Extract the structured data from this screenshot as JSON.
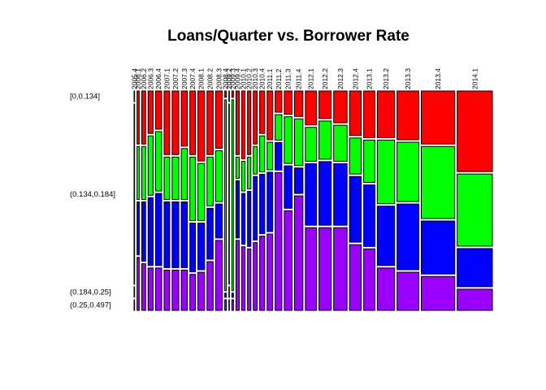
{
  "chart_data": {
    "type": "mosaic",
    "title": "Loans/Quarter vs. Borrower Rate",
    "xlabel": "",
    "ylabel": "",
    "grid": false,
    "legend": "none",
    "categories": [
      "2005.4",
      "2006.1",
      "2006.2",
      "2006.3",
      "2006.4",
      "2007.1",
      "2007.2",
      "2007.3",
      "2007.4",
      "2008.1",
      "2008.2",
      "2008.3",
      "2008.4",
      "2009.2",
      "2009.3",
      "2009.4",
      "2010.1",
      "2010.2",
      "2010.3",
      "2010.4",
      "2011.1",
      "2011.2",
      "2011.3",
      "2011.4",
      "2012.1",
      "2012.2",
      "2012.3",
      "2012.4",
      "2013.1",
      "2013.2",
      "2013.3",
      "2013.4",
      "2014.1"
    ],
    "category_share": [
      0.001,
      0.004,
      0.007,
      0.009,
      0.011,
      0.01,
      0.012,
      0.011,
      0.01,
      0.012,
      0.011,
      0.012,
      0.003,
      0.001,
      0.003,
      0.006,
      0.006,
      0.006,
      0.007,
      0.009,
      0.01,
      0.012,
      0.014,
      0.015,
      0.02,
      0.022,
      0.024,
      0.021,
      0.02,
      0.031,
      0.039,
      0.06,
      0.063
    ],
    "rate_bins": [
      "[0,0.134]",
      "(0.134,0.184]",
      "(0.184,0.25]",
      "(0.25,0.497]"
    ],
    "series": [
      {
        "name": "[0,0.134]",
        "color": "#FF0000",
        "values": [
          0.05,
          0.25,
          0.25,
          0.2,
          0.18,
          0.3,
          0.3,
          0.26,
          0.3,
          0.33,
          0.3,
          0.27,
          0.03,
          0.05,
          0.03,
          0.3,
          0.32,
          0.3,
          0.25,
          0.2,
          0.23,
          0.1,
          0.11,
          0.12,
          0.16,
          0.13,
          0.15,
          0.21,
          0.22,
          0.22,
          0.23,
          0.25,
          0.38
        ]
      },
      {
        "name": "(0.134,0.184]",
        "color": "#00FF00",
        "values": [
          0.85,
          0.25,
          0.25,
          0.28,
          0.28,
          0.2,
          0.2,
          0.24,
          0.3,
          0.27,
          0.23,
          0.24,
          0.9,
          0.85,
          0.9,
          0.1,
          0.14,
          0.15,
          0.13,
          0.17,
          0.13,
          0.12,
          0.22,
          0.22,
          0.16,
          0.18,
          0.17,
          0.17,
          0.2,
          0.3,
          0.28,
          0.34,
          0.34
        ]
      },
      {
        "name": "(0.184,0.25]",
        "color": "#0000FF",
        "values": [
          0.05,
          0.25,
          0.28,
          0.32,
          0.34,
          0.31,
          0.31,
          0.31,
          0.23,
          0.22,
          0.24,
          0.16,
          0.02,
          0.05,
          0.02,
          0.27,
          0.24,
          0.26,
          0.3,
          0.28,
          0.28,
          0.13,
          0.2,
          0.12,
          0.29,
          0.3,
          0.29,
          0.31,
          0.29,
          0.28,
          0.31,
          0.25,
          0.18
        ]
      },
      {
        "name": "(0.25,0.497]",
        "color": "#9900FF",
        "values": [
          0.05,
          0.25,
          0.22,
          0.2,
          0.2,
          0.19,
          0.19,
          0.19,
          0.17,
          0.18,
          0.23,
          0.33,
          0.05,
          0.05,
          0.05,
          0.33,
          0.3,
          0.29,
          0.32,
          0.35,
          0.36,
          0.65,
          0.47,
          0.54,
          0.39,
          0.39,
          0.39,
          0.31,
          0.29,
          0.2,
          0.18,
          0.16,
          0.1
        ]
      }
    ]
  }
}
